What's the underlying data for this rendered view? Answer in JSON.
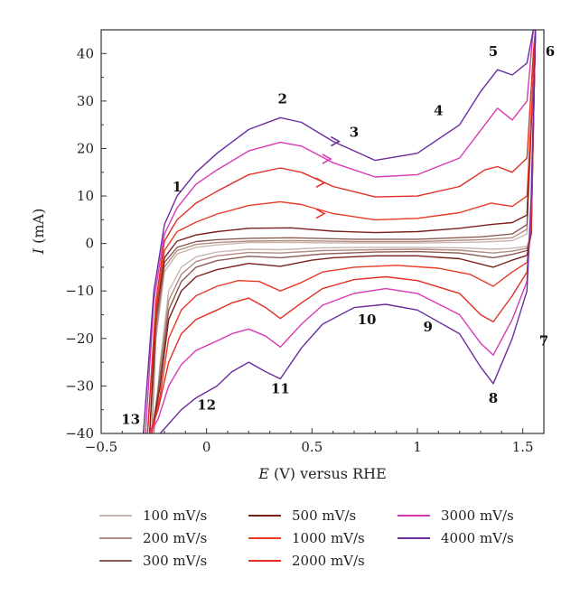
{
  "chart_data": {
    "type": "line",
    "xlabel_var": "E",
    "xlabel_rest": " (V) versus RHE",
    "ylabel_var": "I",
    "ylabel_rest": " (mA)",
    "xlim": [
      -0.5,
      1.6
    ],
    "ylim": [
      -40,
      45
    ],
    "xticks": [
      -0.5,
      0,
      0.5,
      1,
      1.5
    ],
    "xtick_labels": [
      "−0.5",
      "0",
      "0.5",
      "1",
      "1.5"
    ],
    "yticks": [
      -40,
      -30,
      -20,
      -10,
      0,
      10,
      20,
      30,
      40
    ],
    "ytick_labels": [
      "−40",
      "−30",
      "−20",
      "−10",
      "0",
      "10",
      "20",
      "30",
      "40"
    ],
    "grid": false,
    "legend_position": "bottom",
    "series": [
      {
        "name": "100 mV/s",
        "color": "#c8b7b0",
        "anodic": [
          [
            -0.26,
            -40
          ],
          [
            -0.24,
            -20
          ],
          [
            -0.2,
            -6
          ],
          [
            -0.14,
            -2.2
          ],
          [
            -0.05,
            -0.8
          ],
          [
            0.05,
            -0.3
          ],
          [
            0.2,
            0.2
          ],
          [
            0.4,
            0.2
          ],
          [
            0.7,
            0.1
          ],
          [
            1.0,
            0.1
          ],
          [
            1.3,
            0.3
          ],
          [
            1.45,
            0.6
          ],
          [
            1.52,
            2
          ],
          [
            1.55,
            35
          ]
        ],
        "cathodic": [
          [
            1.56,
            45
          ],
          [
            1.54,
            2
          ],
          [
            1.52,
            -0.6
          ],
          [
            1.45,
            -1
          ],
          [
            1.36,
            -1.2
          ],
          [
            1.2,
            -0.9
          ],
          [
            1.0,
            -0.8
          ],
          [
            0.8,
            -0.8
          ],
          [
            0.55,
            -0.9
          ],
          [
            0.35,
            -1.3
          ],
          [
            0.2,
            -1.2
          ],
          [
            0.05,
            -1.8
          ],
          [
            -0.05,
            -2.8
          ],
          [
            -0.12,
            -5
          ],
          [
            -0.18,
            -10
          ],
          [
            -0.22,
            -25
          ],
          [
            -0.25,
            -40
          ]
        ]
      },
      {
        "name": "200 mV/s",
        "color": "#b58b80",
        "anodic": [
          [
            -0.26,
            -40
          ],
          [
            -0.24,
            -19
          ],
          [
            -0.2,
            -5
          ],
          [
            -0.14,
            -1.5
          ],
          [
            -0.05,
            -0.2
          ],
          [
            0.05,
            0.2
          ],
          [
            0.2,
            0.5
          ],
          [
            0.4,
            0.6
          ],
          [
            0.7,
            0.4
          ],
          [
            1.0,
            0.4
          ],
          [
            1.3,
            0.8
          ],
          [
            1.45,
            1.2
          ],
          [
            1.52,
            3
          ],
          [
            1.55,
            35
          ]
        ],
        "cathodic": [
          [
            1.56,
            45
          ],
          [
            1.54,
            2
          ],
          [
            1.52,
            -1
          ],
          [
            1.45,
            -1.6
          ],
          [
            1.36,
            -2
          ],
          [
            1.2,
            -1.4
          ],
          [
            1.0,
            -1.2
          ],
          [
            0.8,
            -1.3
          ],
          [
            0.55,
            -1.5
          ],
          [
            0.35,
            -2
          ],
          [
            0.2,
            -1.9
          ],
          [
            0.05,
            -2.6
          ],
          [
            -0.05,
            -3.8
          ],
          [
            -0.12,
            -6.5
          ],
          [
            -0.18,
            -12
          ],
          [
            -0.22,
            -26
          ],
          [
            -0.25,
            -40
          ]
        ]
      },
      {
        "name": "300 mV/s",
        "color": "#8a5a55",
        "anodic": [
          [
            -0.27,
            -40
          ],
          [
            -0.24,
            -17
          ],
          [
            -0.2,
            -4
          ],
          [
            -0.14,
            -0.8
          ],
          [
            -0.05,
            0.4
          ],
          [
            0.05,
            0.8
          ],
          [
            0.2,
            1.1
          ],
          [
            0.4,
            1.2
          ],
          [
            0.7,
            0.9
          ],
          [
            1.0,
            0.9
          ],
          [
            1.3,
            1.4
          ],
          [
            1.45,
            2
          ],
          [
            1.52,
            4
          ],
          [
            1.55,
            35
          ]
        ],
        "cathodic": [
          [
            1.56,
            45
          ],
          [
            1.54,
            2
          ],
          [
            1.52,
            -1.5
          ],
          [
            1.45,
            -2.3
          ],
          [
            1.36,
            -3
          ],
          [
            1.2,
            -2
          ],
          [
            1.0,
            -1.7
          ],
          [
            0.8,
            -1.8
          ],
          [
            0.55,
            -2.2
          ],
          [
            0.35,
            -3
          ],
          [
            0.2,
            -2.7
          ],
          [
            0.05,
            -3.6
          ],
          [
            -0.05,
            -5
          ],
          [
            -0.12,
            -8
          ],
          [
            -0.18,
            -14
          ],
          [
            -0.22,
            -28
          ],
          [
            -0.26,
            -40
          ]
        ]
      },
      {
        "name": "500 mV/s",
        "color": "#7b1f1a",
        "anodic": [
          [
            -0.27,
            -40
          ],
          [
            -0.24,
            -15
          ],
          [
            -0.2,
            -3
          ],
          [
            -0.14,
            0.5
          ],
          [
            -0.05,
            1.8
          ],
          [
            0.05,
            2.5
          ],
          [
            0.2,
            3.2
          ],
          [
            0.4,
            3.3
          ],
          [
            0.6,
            2.6
          ],
          [
            0.8,
            2.3
          ],
          [
            1.0,
            2.5
          ],
          [
            1.2,
            3.2
          ],
          [
            1.35,
            4
          ],
          [
            1.45,
            4.4
          ],
          [
            1.52,
            6
          ],
          [
            1.55,
            35
          ]
        ],
        "cathodic": [
          [
            1.56,
            45
          ],
          [
            1.54,
            2
          ],
          [
            1.52,
            -2.5
          ],
          [
            1.45,
            -3.5
          ],
          [
            1.36,
            -5
          ],
          [
            1.2,
            -3.2
          ],
          [
            1.0,
            -2.6
          ],
          [
            0.8,
            -2.6
          ],
          [
            0.6,
            -3
          ],
          [
            0.5,
            -3.5
          ],
          [
            0.35,
            -4.8
          ],
          [
            0.2,
            -4.2
          ],
          [
            0.05,
            -5.5
          ],
          [
            -0.05,
            -7
          ],
          [
            -0.12,
            -10
          ],
          [
            -0.18,
            -16
          ],
          [
            -0.22,
            -30
          ],
          [
            -0.26,
            -40
          ]
        ]
      },
      {
        "name": "1000 mV/s",
        "color": "#e83a25",
        "anodic": [
          [
            -0.28,
            -40
          ],
          [
            -0.24,
            -14
          ],
          [
            -0.2,
            -1.5
          ],
          [
            -0.14,
            2.5
          ],
          [
            -0.05,
            4.5
          ],
          [
            0.05,
            6.2
          ],
          [
            0.2,
            8
          ],
          [
            0.35,
            8.8
          ],
          [
            0.45,
            8.2
          ],
          [
            0.6,
            6.3
          ],
          [
            0.8,
            5
          ],
          [
            1.0,
            5.3
          ],
          [
            1.2,
            6.5
          ],
          [
            1.35,
            8.5
          ],
          [
            1.45,
            7.8
          ],
          [
            1.52,
            10
          ],
          [
            1.55,
            35
          ]
        ],
        "cathodic": [
          [
            1.56,
            45
          ],
          [
            1.54,
            3
          ],
          [
            1.52,
            -4
          ],
          [
            1.45,
            -6
          ],
          [
            1.36,
            -9
          ],
          [
            1.25,
            -6.5
          ],
          [
            1.1,
            -5.2
          ],
          [
            0.9,
            -4.6
          ],
          [
            0.7,
            -5
          ],
          [
            0.55,
            -6
          ],
          [
            0.45,
            -8.2
          ],
          [
            0.35,
            -10
          ],
          [
            0.25,
            -8
          ],
          [
            0.15,
            -7.8
          ],
          [
            0.05,
            -9
          ],
          [
            -0.05,
            -11
          ],
          [
            -0.12,
            -14
          ],
          [
            -0.18,
            -20
          ],
          [
            -0.22,
            -32
          ],
          [
            -0.26,
            -40
          ]
        ]
      },
      {
        "name": "2000 mV/s",
        "color": "#e12d22",
        "anodic": [
          [
            -0.28,
            -40
          ],
          [
            -0.24,
            -12
          ],
          [
            -0.2,
            0.5
          ],
          [
            -0.14,
            5
          ],
          [
            -0.05,
            8.5
          ],
          [
            0.05,
            11
          ],
          [
            0.2,
            14.5
          ],
          [
            0.35,
            15.9
          ],
          [
            0.45,
            15
          ],
          [
            0.6,
            12
          ],
          [
            0.8,
            9.8
          ],
          [
            1.0,
            10
          ],
          [
            1.2,
            12
          ],
          [
            1.32,
            15.5
          ],
          [
            1.38,
            16.2
          ],
          [
            1.45,
            15
          ],
          [
            1.52,
            18
          ],
          [
            1.55,
            40
          ]
        ],
        "cathodic": [
          [
            1.56,
            45
          ],
          [
            1.54,
            5
          ],
          [
            1.52,
            -6
          ],
          [
            1.45,
            -11
          ],
          [
            1.36,
            -16.5
          ],
          [
            1.3,
            -15
          ],
          [
            1.2,
            -10.5
          ],
          [
            1.0,
            -7.8
          ],
          [
            0.85,
            -7
          ],
          [
            0.7,
            -7.6
          ],
          [
            0.55,
            -9.5
          ],
          [
            0.45,
            -12.5
          ],
          [
            0.35,
            -15.8
          ],
          [
            0.28,
            -13.5
          ],
          [
            0.2,
            -11.5
          ],
          [
            0.12,
            -12.5
          ],
          [
            0.05,
            -14
          ],
          [
            -0.05,
            -16
          ],
          [
            -0.12,
            -19
          ],
          [
            -0.18,
            -25
          ],
          [
            -0.23,
            -35
          ],
          [
            -0.27,
            -40
          ]
        ]
      },
      {
        "name": "3000 mV/s",
        "color": "#d838b4",
        "anodic": [
          [
            -0.29,
            -40
          ],
          [
            -0.25,
            -12
          ],
          [
            -0.2,
            2
          ],
          [
            -0.14,
            7.5
          ],
          [
            -0.05,
            12.5
          ],
          [
            0.05,
            15.5
          ],
          [
            0.2,
            19.5
          ],
          [
            0.35,
            21.3
          ],
          [
            0.45,
            20.5
          ],
          [
            0.6,
            17
          ],
          [
            0.8,
            14
          ],
          [
            1.0,
            14.5
          ],
          [
            1.2,
            18
          ],
          [
            1.32,
            25
          ],
          [
            1.38,
            28.5
          ],
          [
            1.45,
            26
          ],
          [
            1.52,
            30
          ],
          [
            1.55,
            45
          ]
        ],
        "cathodic": [
          [
            1.56,
            45
          ],
          [
            1.54,
            8
          ],
          [
            1.52,
            -8
          ],
          [
            1.45,
            -16
          ],
          [
            1.36,
            -23.5
          ],
          [
            1.3,
            -21
          ],
          [
            1.2,
            -15
          ],
          [
            1.0,
            -10.5
          ],
          [
            0.85,
            -9.5
          ],
          [
            0.7,
            -10.5
          ],
          [
            0.55,
            -13
          ],
          [
            0.45,
            -17
          ],
          [
            0.35,
            -21.8
          ],
          [
            0.28,
            -19.5
          ],
          [
            0.2,
            -18
          ],
          [
            0.12,
            -19
          ],
          [
            0.05,
            -20.5
          ],
          [
            -0.05,
            -22.5
          ],
          [
            -0.12,
            -25.5
          ],
          [
            -0.18,
            -30
          ],
          [
            -0.23,
            -37
          ],
          [
            -0.27,
            -40
          ]
        ]
      },
      {
        "name": "4000 mV/s",
        "color": "#6a2c9e",
        "anodic": [
          [
            -0.3,
            -40
          ],
          [
            -0.25,
            -10
          ],
          [
            -0.2,
            4
          ],
          [
            -0.14,
            10
          ],
          [
            -0.05,
            15
          ],
          [
            0.05,
            19
          ],
          [
            0.2,
            24
          ],
          [
            0.35,
            26.5
          ],
          [
            0.45,
            25.5
          ],
          [
            0.6,
            21.5
          ],
          [
            0.8,
            17.5
          ],
          [
            1.0,
            19
          ],
          [
            1.2,
            25
          ],
          [
            1.3,
            32
          ],
          [
            1.38,
            36.6
          ],
          [
            1.45,
            35.5
          ],
          [
            1.52,
            38
          ],
          [
            1.55,
            45
          ]
        ],
        "cathodic": [
          [
            1.56,
            45
          ],
          [
            1.54,
            10
          ],
          [
            1.52,
            -10
          ],
          [
            1.45,
            -20
          ],
          [
            1.36,
            -29.5
          ],
          [
            1.3,
            -26
          ],
          [
            1.2,
            -19
          ],
          [
            1.0,
            -14
          ],
          [
            0.85,
            -12.8
          ],
          [
            0.7,
            -13.5
          ],
          [
            0.55,
            -17
          ],
          [
            0.45,
            -22
          ],
          [
            0.35,
            -28.5
          ],
          [
            0.28,
            -27
          ],
          [
            0.2,
            -25
          ],
          [
            0.12,
            -27
          ],
          [
            0.05,
            -30
          ],
          [
            -0.05,
            -32.5
          ],
          [
            -0.12,
            -35
          ],
          [
            -0.18,
            -38
          ],
          [
            -0.22,
            -40
          ]
        ]
      }
    ],
    "arrows": [
      {
        "series": "1000 mV/s",
        "x": 0.55,
        "y": 6.3
      },
      {
        "series": "2000 mV/s",
        "x": 0.55,
        "y": 12.8
      },
      {
        "series": "3000 mV/s",
        "x": 0.58,
        "y": 17.8
      },
      {
        "series": "4000 mV/s",
        "x": 0.62,
        "y": 21.5
      }
    ],
    "annotations": [
      {
        "label": "1",
        "x": -0.14,
        "y": 11
      },
      {
        "label": "2",
        "x": 0.36,
        "y": 29.5
      },
      {
        "label": "3",
        "x": 0.7,
        "y": 22.5
      },
      {
        "label": "4",
        "x": 1.1,
        "y": 27
      },
      {
        "label": "5",
        "x": 1.36,
        "y": 39.5
      },
      {
        "label": "6",
        "x": 1.63,
        "y": 39.5
      },
      {
        "label": "7",
        "x": 1.6,
        "y": -21.5
      },
      {
        "label": "8",
        "x": 1.36,
        "y": -33.5
      },
      {
        "label": "9",
        "x": 1.05,
        "y": -18.5
      },
      {
        "label": "10",
        "x": 0.76,
        "y": -17
      },
      {
        "label": "11",
        "x": 0.35,
        "y": -31.5
      },
      {
        "label": "12",
        "x": 0.0,
        "y": -35
      },
      {
        "label": "13",
        "x": -0.36,
        "y": -38
      }
    ]
  }
}
